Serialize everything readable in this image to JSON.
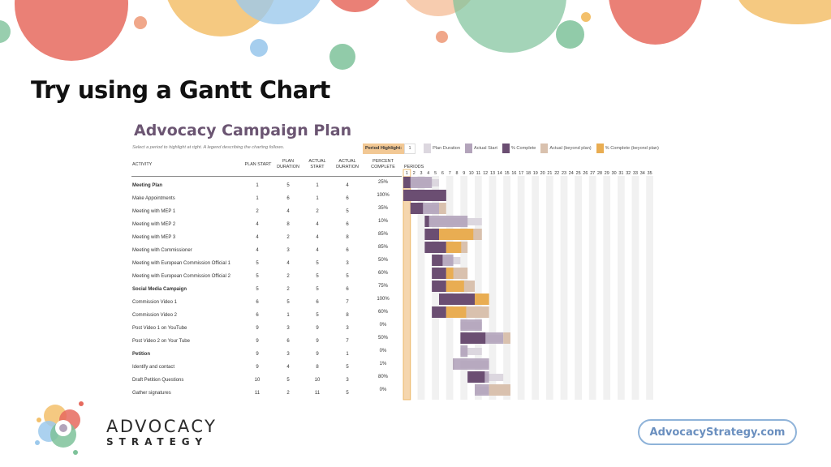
{
  "slide": {
    "title": "Try using a Gantt Chart"
  },
  "plan": {
    "title": "Advocacy Campaign Plan",
    "subtitle": "Select a period to highlight at right.  A legend describing the charting follows."
  },
  "legend": {
    "highlight_label": "Period Highlight:",
    "highlight_value": "1",
    "items": [
      {
        "label": "Plan Duration",
        "color": "#dcd7df"
      },
      {
        "label": "Actual Start",
        "color": "#b3a4bb"
      },
      {
        "label": "% Complete",
        "color": "#6b4e72"
      },
      {
        "label": "Actual (beyond plan)",
        "color": "#d9c1ae"
      },
      {
        "label": "% Complete (beyond plan)",
        "color": "#e9ad52"
      }
    ]
  },
  "columns": {
    "activity": "ACTIVITY",
    "plan_start": "PLAN START",
    "plan_duration": "PLAN DURATION",
    "actual_start": "ACTUAL START",
    "actual_duration": "ACTUAL DURATION",
    "percent_complete": "PERCENT COMPLETE",
    "periods": "PERIODS"
  },
  "periods": [
    "1",
    "2",
    "3",
    "4",
    "5",
    "6",
    "7",
    "8",
    "9",
    "10",
    "11",
    "12",
    "13",
    "14",
    "15",
    "16",
    "17",
    "18",
    "19",
    "20",
    "21",
    "22",
    "23",
    "24",
    "25",
    "26",
    "27",
    "28",
    "29",
    "30",
    "31",
    "32",
    "33",
    "34",
    "35"
  ],
  "rows": [
    {
      "name": "Meeting Plan",
      "bold": true,
      "plan_start": 1,
      "plan_duration": 5,
      "actual_start": 1,
      "actual_duration": 4,
      "percent": "25%"
    },
    {
      "name": "Make Appointments",
      "bold": false,
      "plan_start": 1,
      "plan_duration": 6,
      "actual_start": 1,
      "actual_duration": 6,
      "percent": "100%"
    },
    {
      "name": "Meeting with MEP 1",
      "bold": false,
      "plan_start": 2,
      "plan_duration": 4,
      "actual_start": 2,
      "actual_duration": 5,
      "percent": "35%"
    },
    {
      "name": "Meeting with MEP 2",
      "bold": false,
      "plan_start": 4,
      "plan_duration": 8,
      "actual_start": 4,
      "actual_duration": 6,
      "percent": "10%"
    },
    {
      "name": "Meeting with MEP 3",
      "bold": false,
      "plan_start": 4,
      "plan_duration": 2,
      "actual_start": 4,
      "actual_duration": 8,
      "percent": "85%"
    },
    {
      "name": "Meeting with Commissioner",
      "bold": false,
      "plan_start": 4,
      "plan_duration": 3,
      "actual_start": 4,
      "actual_duration": 6,
      "percent": "85%"
    },
    {
      "name": "Meeting with European Commission Official 1",
      "bold": false,
      "plan_start": 5,
      "plan_duration": 4,
      "actual_start": 5,
      "actual_duration": 3,
      "percent": "50%"
    },
    {
      "name": "Meeting with European Commission Official 2",
      "bold": false,
      "plan_start": 5,
      "plan_duration": 2,
      "actual_start": 5,
      "actual_duration": 5,
      "percent": "60%"
    },
    {
      "name": "Social Media Campaign",
      "bold": true,
      "plan_start": 5,
      "plan_duration": 2,
      "actual_start": 5,
      "actual_duration": 6,
      "percent": "75%"
    },
    {
      "name": "Commission Video 1",
      "bold": false,
      "plan_start": 6,
      "plan_duration": 5,
      "actual_start": 6,
      "actual_duration": 7,
      "percent": "100%"
    },
    {
      "name": "Commission Video 2",
      "bold": false,
      "plan_start": 6,
      "plan_duration": 1,
      "actual_start": 5,
      "actual_duration": 8,
      "percent": "60%"
    },
    {
      "name": "Post Video 1 on YouTube",
      "bold": false,
      "plan_start": 9,
      "plan_duration": 3,
      "actual_start": 9,
      "actual_duration": 3,
      "percent": "0%"
    },
    {
      "name": "Post Video 2 on Your Tube",
      "bold": false,
      "plan_start": 9,
      "plan_duration": 6,
      "actual_start": 9,
      "actual_duration": 7,
      "percent": "50%"
    },
    {
      "name": "Petition",
      "bold": true,
      "plan_start": 9,
      "plan_duration": 3,
      "actual_start": 9,
      "actual_duration": 1,
      "percent": "0%"
    },
    {
      "name": "Identify and contact",
      "bold": false,
      "plan_start": 9,
      "plan_duration": 4,
      "actual_start": 8,
      "actual_duration": 5,
      "percent": "1%"
    },
    {
      "name": "Draft Petition Questions",
      "bold": false,
      "plan_start": 10,
      "plan_duration": 5,
      "actual_start": 10,
      "actual_duration": 3,
      "percent": "80%"
    },
    {
      "name": "Gather signatures",
      "bold": false,
      "plan_start": 11,
      "plan_duration": 2,
      "actual_start": 11,
      "actual_duration": 5,
      "percent": "0%"
    }
  ],
  "logo": {
    "line1": "ADVOCACY",
    "line2": "STRATEGY"
  },
  "url": "AdvocacyStrategy.com"
}
